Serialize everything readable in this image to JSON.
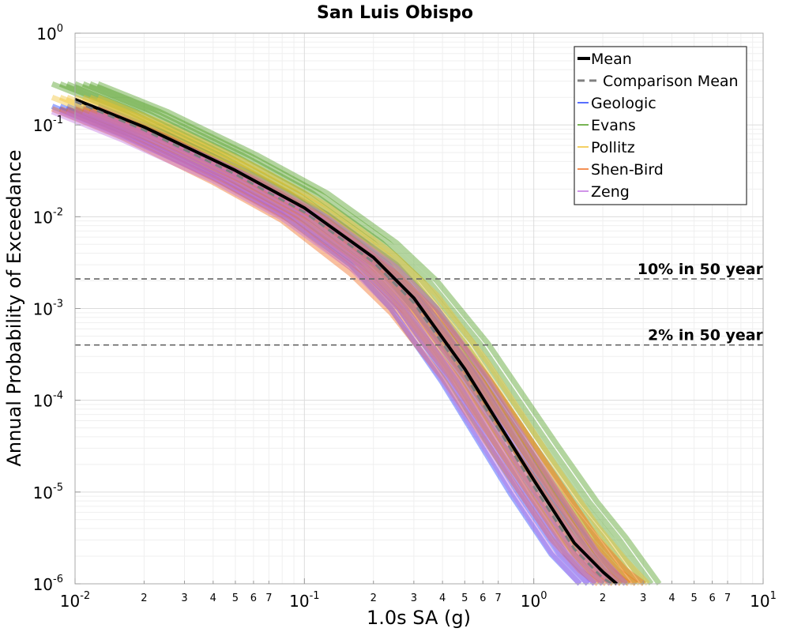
{
  "chart_data": {
    "type": "line",
    "title": "San Luis Obispo",
    "xlabel": "1.0s SA (g)",
    "ylabel": "Annual Probability of Exceedance",
    "xscale": "log",
    "yscale": "log",
    "xlim": [
      0.01,
      10
    ],
    "ylim": [
      1e-06,
      1
    ],
    "grid": true,
    "legend_position": "top-right",
    "x_major_ticks": [
      {
        "value": 0.01,
        "base": "10",
        "exp": "-2"
      },
      {
        "value": 0.1,
        "base": "10",
        "exp": "-1"
      },
      {
        "value": 1,
        "base": "10",
        "exp": "0"
      },
      {
        "value": 10,
        "base": "10",
        "exp": "1"
      }
    ],
    "x_minor_ticks": [
      {
        "value": 0.02,
        "label": "2"
      },
      {
        "value": 0.03,
        "label": "3"
      },
      {
        "value": 0.04,
        "label": "4"
      },
      {
        "value": 0.05,
        "label": "5"
      },
      {
        "value": 0.06,
        "label": "6"
      },
      {
        "value": 0.07,
        "label": "7"
      },
      {
        "value": 0.2,
        "label": "2"
      },
      {
        "value": 0.3,
        "label": "3"
      },
      {
        "value": 0.4,
        "label": "4"
      },
      {
        "value": 0.5,
        "label": "5"
      },
      {
        "value": 0.6,
        "label": "6"
      },
      {
        "value": 0.7,
        "label": "7"
      },
      {
        "value": 2,
        "label": "2"
      },
      {
        "value": 3,
        "label": "3"
      },
      {
        "value": 4,
        "label": "4"
      },
      {
        "value": 5,
        "label": "5"
      },
      {
        "value": 6,
        "label": "6"
      },
      {
        "value": 7,
        "label": "7"
      }
    ],
    "y_major_ticks": [
      {
        "value": 1,
        "base": "10",
        "exp": "0"
      },
      {
        "value": 0.1,
        "base": "10",
        "exp": "-1"
      },
      {
        "value": 0.01,
        "base": "10",
        "exp": "-2"
      },
      {
        "value": 0.001,
        "base": "10",
        "exp": "-3"
      },
      {
        "value": 0.0001,
        "base": "10",
        "exp": "-4"
      },
      {
        "value": 1e-05,
        "base": "10",
        "exp": "-5"
      },
      {
        "value": 1e-06,
        "base": "10",
        "exp": "-6"
      }
    ],
    "reference_lines": [
      {
        "label": "10% in 50 year",
        "y": 0.0021
      },
      {
        "label": "2% in 50 year",
        "y": 0.0004
      }
    ],
    "series": [
      {
        "name": "Mean",
        "style": "solid",
        "color": "#000000",
        "x": [
          0.01,
          0.02,
          0.05,
          0.1,
          0.2,
          0.3,
          0.5,
          1.0,
          1.5,
          2.0,
          2.3
        ],
        "y": [
          0.19,
          0.095,
          0.032,
          0.0125,
          0.0036,
          0.0013,
          0.00022,
          1.35e-05,
          2.8e-06,
          1.35e-06,
          1e-06
        ]
      },
      {
        "name": "Comparison Mean",
        "style": "dashed",
        "color": "#808080",
        "x": [
          0.01,
          0.02,
          0.05,
          0.1,
          0.2,
          0.3,
          0.5,
          1.0,
          1.5,
          2.0,
          2.2
        ],
        "y": [
          0.18,
          0.088,
          0.029,
          0.0112,
          0.0032,
          0.00115,
          0.00019,
          1.15e-05,
          2.4e-06,
          1.15e-06,
          1e-06
        ]
      },
      {
        "name": "Geologic",
        "style": "band",
        "color": "#1f3fff",
        "x": [
          0.01,
          0.02,
          0.05,
          0.1,
          0.2,
          0.3,
          0.5,
          1.0,
          1.5,
          2.0
        ],
        "y": [
          0.16,
          0.079,
          0.027,
          0.0106,
          0.003,
          0.001,
          0.00016,
          9.5e-06,
          2.1e-06,
          1e-06
        ]
      },
      {
        "name": "Evans",
        "style": "band",
        "color": "#4a9a1a",
        "x": [
          0.01,
          0.02,
          0.05,
          0.1,
          0.2,
          0.3,
          0.5,
          1.0,
          1.5,
          2.0,
          2.8
        ],
        "y": [
          0.28,
          0.14,
          0.046,
          0.018,
          0.0052,
          0.002,
          0.00042,
          3.3e-05,
          7.8e-06,
          3.2e-06,
          1e-06
        ]
      },
      {
        "name": "Pollitz",
        "style": "band",
        "color": "#f0c030",
        "x": [
          0.01,
          0.02,
          0.05,
          0.1,
          0.2,
          0.3,
          0.5,
          1.0,
          1.5,
          2.0,
          2.5
        ],
        "y": [
          0.2,
          0.1,
          0.034,
          0.0132,
          0.0037,
          0.0014,
          0.00026,
          1.85e-05,
          4.3e-06,
          1.8e-06,
          1e-06
        ]
      },
      {
        "name": "Shen-Bird",
        "style": "band",
        "color": "#f06a1a",
        "x": [
          0.01,
          0.02,
          0.05,
          0.1,
          0.2,
          0.3,
          0.5,
          1.0,
          1.5,
          2.0,
          2.4
        ],
        "y": [
          0.15,
          0.074,
          0.024,
          0.0092,
          0.0024,
          0.0009,
          0.00018,
          1.4e-05,
          3.1e-06,
          1.4e-06,
          1e-06
        ]
      },
      {
        "name": "Zeng",
        "style": "band",
        "color": "#c070e0",
        "x": [
          0.01,
          0.02,
          0.05,
          0.1,
          0.2,
          0.3,
          0.5,
          1.0,
          1.5,
          2.0
        ],
        "y": [
          0.14,
          0.07,
          0.025,
          0.0098,
          0.0028,
          0.001,
          0.00017,
          1.05e-05,
          2.2e-06,
          1e-06
        ]
      }
    ]
  }
}
